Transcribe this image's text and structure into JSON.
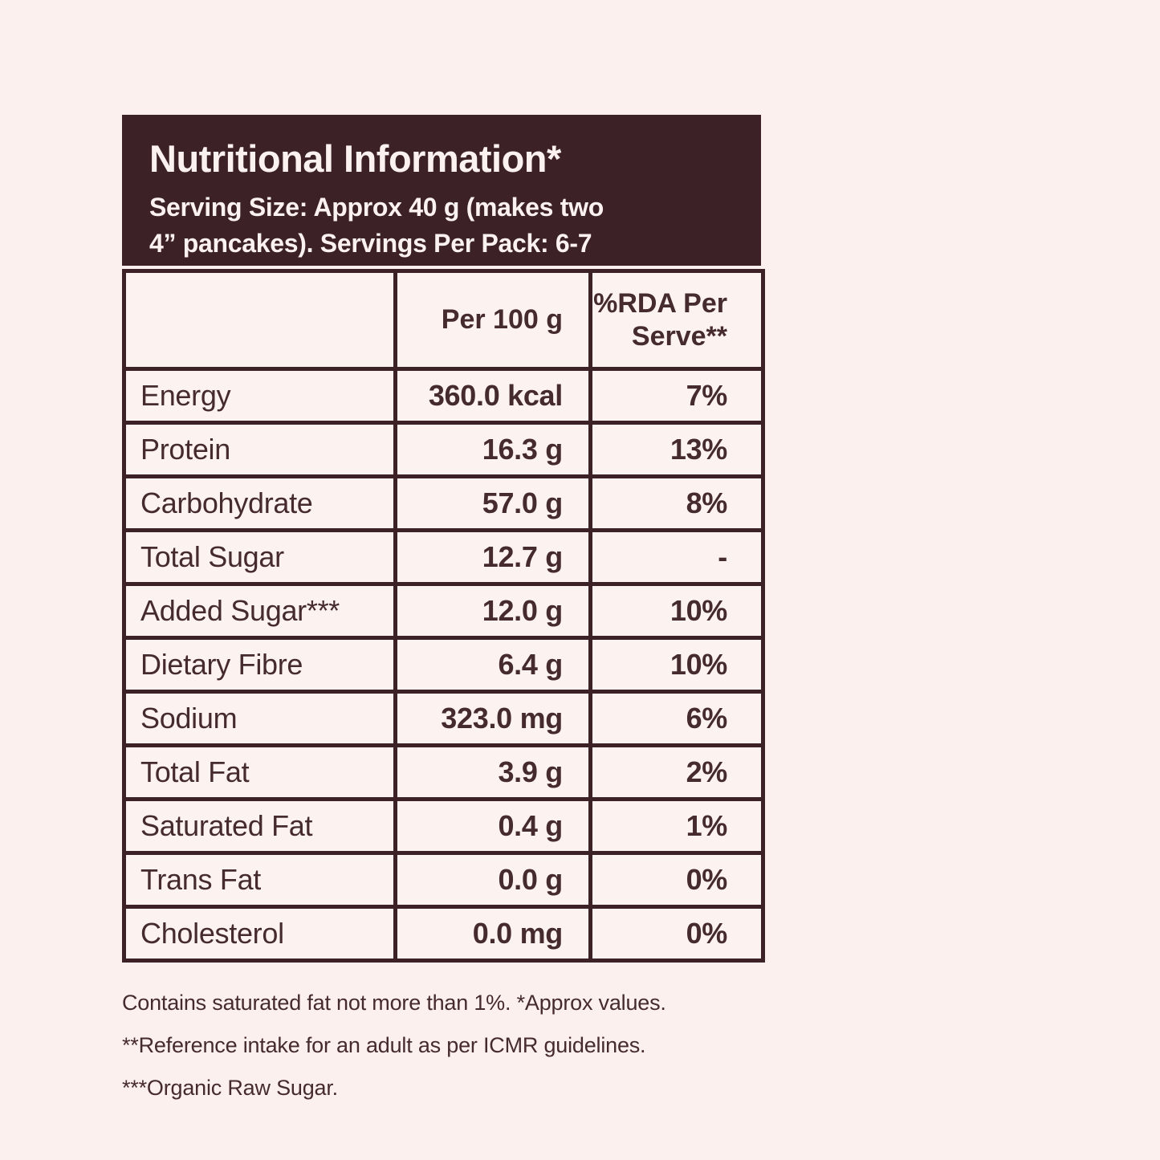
{
  "colors": {
    "page_background": "#fbf0ee",
    "panel_dark": "#3c2126",
    "text_dark": "#452a2e",
    "text_light": "#fbf2f0"
  },
  "header": {
    "title": "Nutritional Information*",
    "serving_line1": "Serving Size: Approx 40 g (makes two",
    "serving_line2": "4” pancakes). Servings Per Pack: 6-7"
  },
  "table": {
    "header": {
      "label_col": "",
      "per100_col": "Per 100 g",
      "rda_col_line1": "%RDA Per",
      "rda_col_line2": "Serve**"
    },
    "rows": [
      {
        "label": "Energy",
        "per100": "360.0 kcal",
        "rda": "7%"
      },
      {
        "label": "Protein",
        "per100": "16.3 g",
        "rda": "13%"
      },
      {
        "label": "Carbohydrate",
        "per100": "57.0 g",
        "rda": "8%"
      },
      {
        "label": "Total Sugar",
        "per100": "12.7 g",
        "rda": "-"
      },
      {
        "label": "Added Sugar***",
        "per100": "12.0 g",
        "rda": "10%"
      },
      {
        "label": "Dietary Fibre",
        "per100": "6.4 g",
        "rda": "10%"
      },
      {
        "label": "Sodium",
        "per100": "323.0 mg",
        "rda": "6%"
      },
      {
        "label": "Total Fat",
        "per100": "3.9 g",
        "rda": "2%"
      },
      {
        "label": "Saturated Fat",
        "per100": "0.4 g",
        "rda": "1%"
      },
      {
        "label": "Trans Fat",
        "per100": "0.0 g",
        "rda": "0%"
      },
      {
        "label": "Cholesterol",
        "per100": "0.0 mg",
        "rda": "0%"
      }
    ]
  },
  "footnotes": [
    "Contains saturated fat not more than 1%. *Approx values.",
    "**Reference intake for an adult as per ICMR guidelines.",
    "***Organic Raw Sugar."
  ]
}
